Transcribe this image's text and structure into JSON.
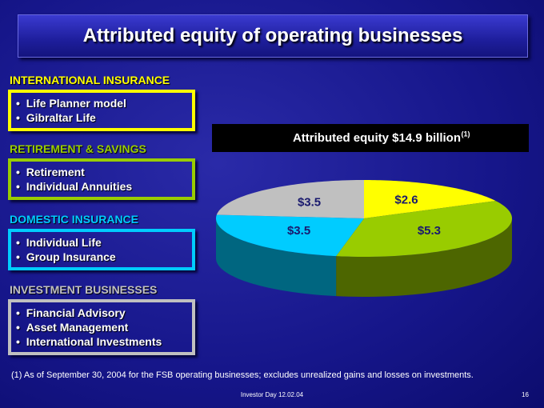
{
  "title": "Attributed equity of operating businesses",
  "sections": [
    {
      "heading": "INTERNATIONAL INSURANCE",
      "color": "#ffff00",
      "items": [
        "Life Planner model",
        "Gibraltar Life"
      ]
    },
    {
      "heading": "RETIREMENT & SAVINGS",
      "color": "#99cc00",
      "items": [
        "Retirement",
        "Individual Annuities"
      ]
    },
    {
      "heading": "DOMESTIC INSURANCE",
      "color": "#00ccff",
      "items": [
        "Individual Life",
        "Group Insurance"
      ]
    },
    {
      "heading": "INVESTMENT BUSINESSES",
      "color": "#c0c0c0",
      "items": [
        "Financial Advisory",
        "Asset Management",
        "International Investments"
      ]
    }
  ],
  "chart_data": {
    "type": "pie",
    "title": "Attributed equity $14.9 billion",
    "title_note": "(1)",
    "values": [
      2.6,
      5.3,
      3.5,
      3.5
    ],
    "value_labels": [
      "$2.6",
      "$5.3",
      "$3.5",
      "$3.5"
    ],
    "colors": [
      "#ffff00",
      "#99cc00",
      "#00ccff",
      "#c0c0c0"
    ]
  },
  "footnote": "(1) As of September 30, 2004 for the FSB operating businesses; excludes unrealized gains and losses on investments.",
  "footer": "Investor Day 12.02.04",
  "page_number": "16"
}
